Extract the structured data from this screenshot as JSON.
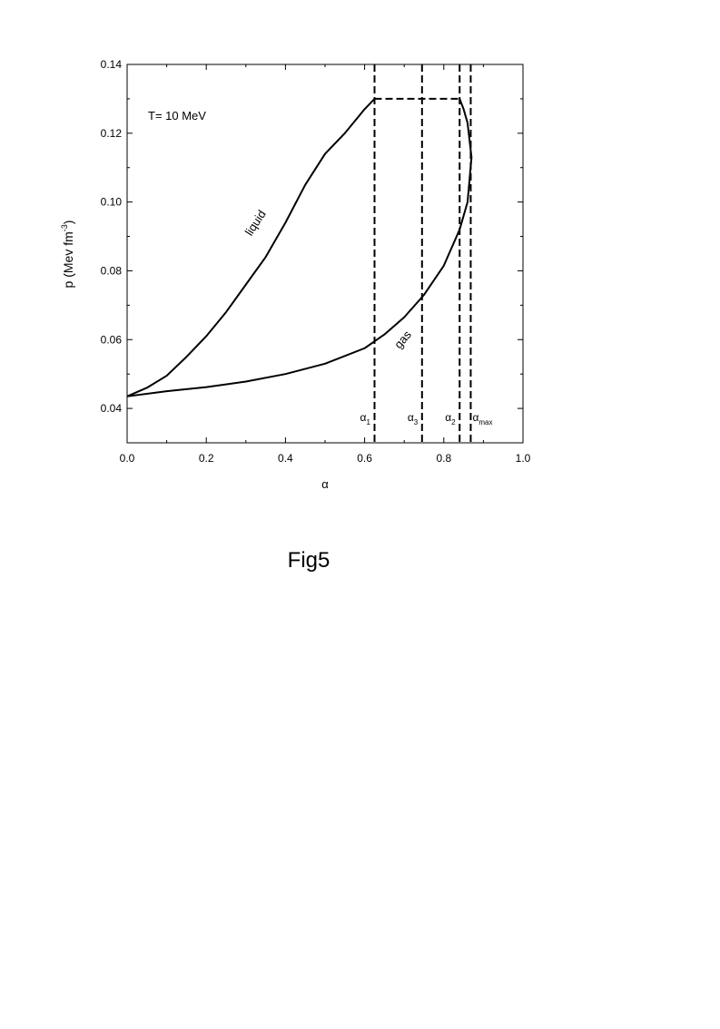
{
  "chart_data": {
    "type": "line",
    "xlabel": "α",
    "ylabel": "p (Mev fm",
    "ylabel_sup": "-3",
    "ylabel_end": ")",
    "annotation": "T= 10 MeV",
    "caption": "Fig5",
    "xlim": [
      0,
      1
    ],
    "ylim": [
      0.03,
      0.14
    ],
    "xticks": [
      {
        "value": 0,
        "label": "0.0"
      },
      0.2,
      0.4,
      0.6,
      0.8,
      {
        "value": 1,
        "label": "1.0"
      }
    ],
    "yticks": [
      0.04,
      0.06,
      0.08,
      {
        "value": 0.1,
        "label": "0.10"
      },
      0.12,
      0.14
    ],
    "series": [
      {
        "name": "liquid",
        "color": "#000000",
        "x": [
          0,
          0.05,
          0.1,
          0.15,
          0.2,
          0.25,
          0.3,
          0.35,
          0.4,
          0.45,
          0.5,
          0.55,
          0.6,
          0.625
        ],
        "values": [
          0.0435,
          0.046,
          0.0495,
          0.055,
          0.061,
          0.068,
          0.076,
          0.084,
          0.094,
          0.105,
          0.114,
          0.12,
          0.127,
          0.13
        ]
      },
      {
        "name": "gas",
        "color": "#000000",
        "x": [
          0,
          0.1,
          0.2,
          0.3,
          0.4,
          0.5,
          0.6,
          0.65,
          0.7,
          0.75,
          0.8,
          0.84,
          0.86,
          0.87,
          0.86,
          0.85,
          0.84
        ],
        "values": [
          0.0435,
          0.045,
          0.0462,
          0.0478,
          0.05,
          0.053,
          0.0575,
          0.0615,
          0.0665,
          0.073,
          0.0815,
          0.092,
          0.1,
          0.113,
          0.123,
          0.127,
          0.13
        ]
      }
    ],
    "reference_lines": [
      {
        "x": 0.625,
        "symbol": "α",
        "subscript": "1"
      },
      {
        "x": 0.745,
        "symbol": "α",
        "subscript": "3"
      },
      {
        "x": 0.84,
        "symbol": "α",
        "subscript": "2"
      },
      {
        "x": 0.868,
        "symbol": "α",
        "subscript": "max"
      }
    ],
    "tie_line": {
      "y": 0.13,
      "x": [
        0.625,
        0.84
      ]
    }
  }
}
